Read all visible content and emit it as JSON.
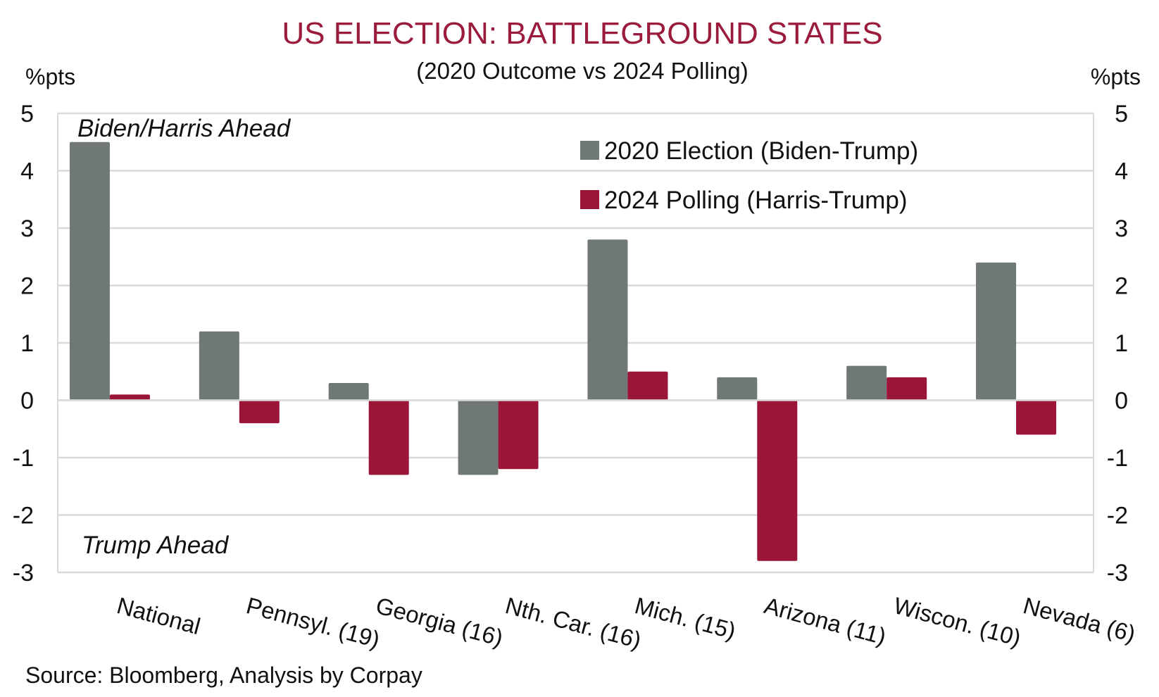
{
  "chart_data": {
    "type": "bar",
    "title": "US ELECTION: BATTLEGROUND STATES",
    "subtitle": "(2020 Outcome vs 2024 Polling)",
    "ylabel_left": "%pts",
    "ylabel_right": "%pts",
    "xlabel": "",
    "ylim": [
      -3,
      5
    ],
    "yticks": [
      5,
      4,
      3,
      2,
      1,
      0,
      -1,
      -2,
      -3
    ],
    "grid": true,
    "legend_position": "top-right",
    "categories": [
      "National",
      "Pennsyl. (19)",
      "Georgia (16)",
      "Nth. Car. (16)",
      "Mich. (15)",
      "Arizona (11)",
      "Wiscon. (10)",
      "Nevada (6)"
    ],
    "series": [
      {
        "name": "2020 Election (Biden-Trump)",
        "color": "#6f7873",
        "values": [
          4.5,
          1.2,
          0.3,
          -1.3,
          2.8,
          0.4,
          0.6,
          2.4
        ]
      },
      {
        "name": "2024 Polling (Harris-Trump)",
        "color": "#9b1539",
        "values": [
          0.1,
          -0.4,
          -1.3,
          -1.2,
          0.5,
          -2.8,
          0.4,
          -0.6
        ]
      }
    ],
    "annotations": {
      "top": "Biden/Harris Ahead",
      "bottom": "Trump Ahead"
    },
    "source": "Source: Bloomberg, Analysis by Corpay"
  }
}
